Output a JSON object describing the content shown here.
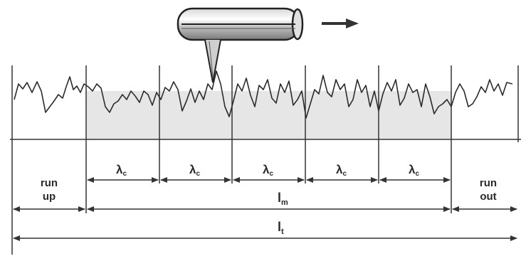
{
  "diagram": {
    "stylus_direction_icon": "arrow-right-icon",
    "sections": {
      "run_up": [
        "run",
        "up"
      ],
      "run_out": [
        "run",
        "out"
      ]
    },
    "cutoff_label": {
      "symbol": "λ",
      "subscript": "c"
    },
    "cutoff_count": 5,
    "evaluation_length": {
      "symbol": "l",
      "subscript": "m"
    },
    "traverse_length": {
      "symbol": "l",
      "subscript": "t"
    },
    "colors": {
      "line": "#333333",
      "profile": "#2b2b2b",
      "shading": "#e6e6e6"
    }
  }
}
